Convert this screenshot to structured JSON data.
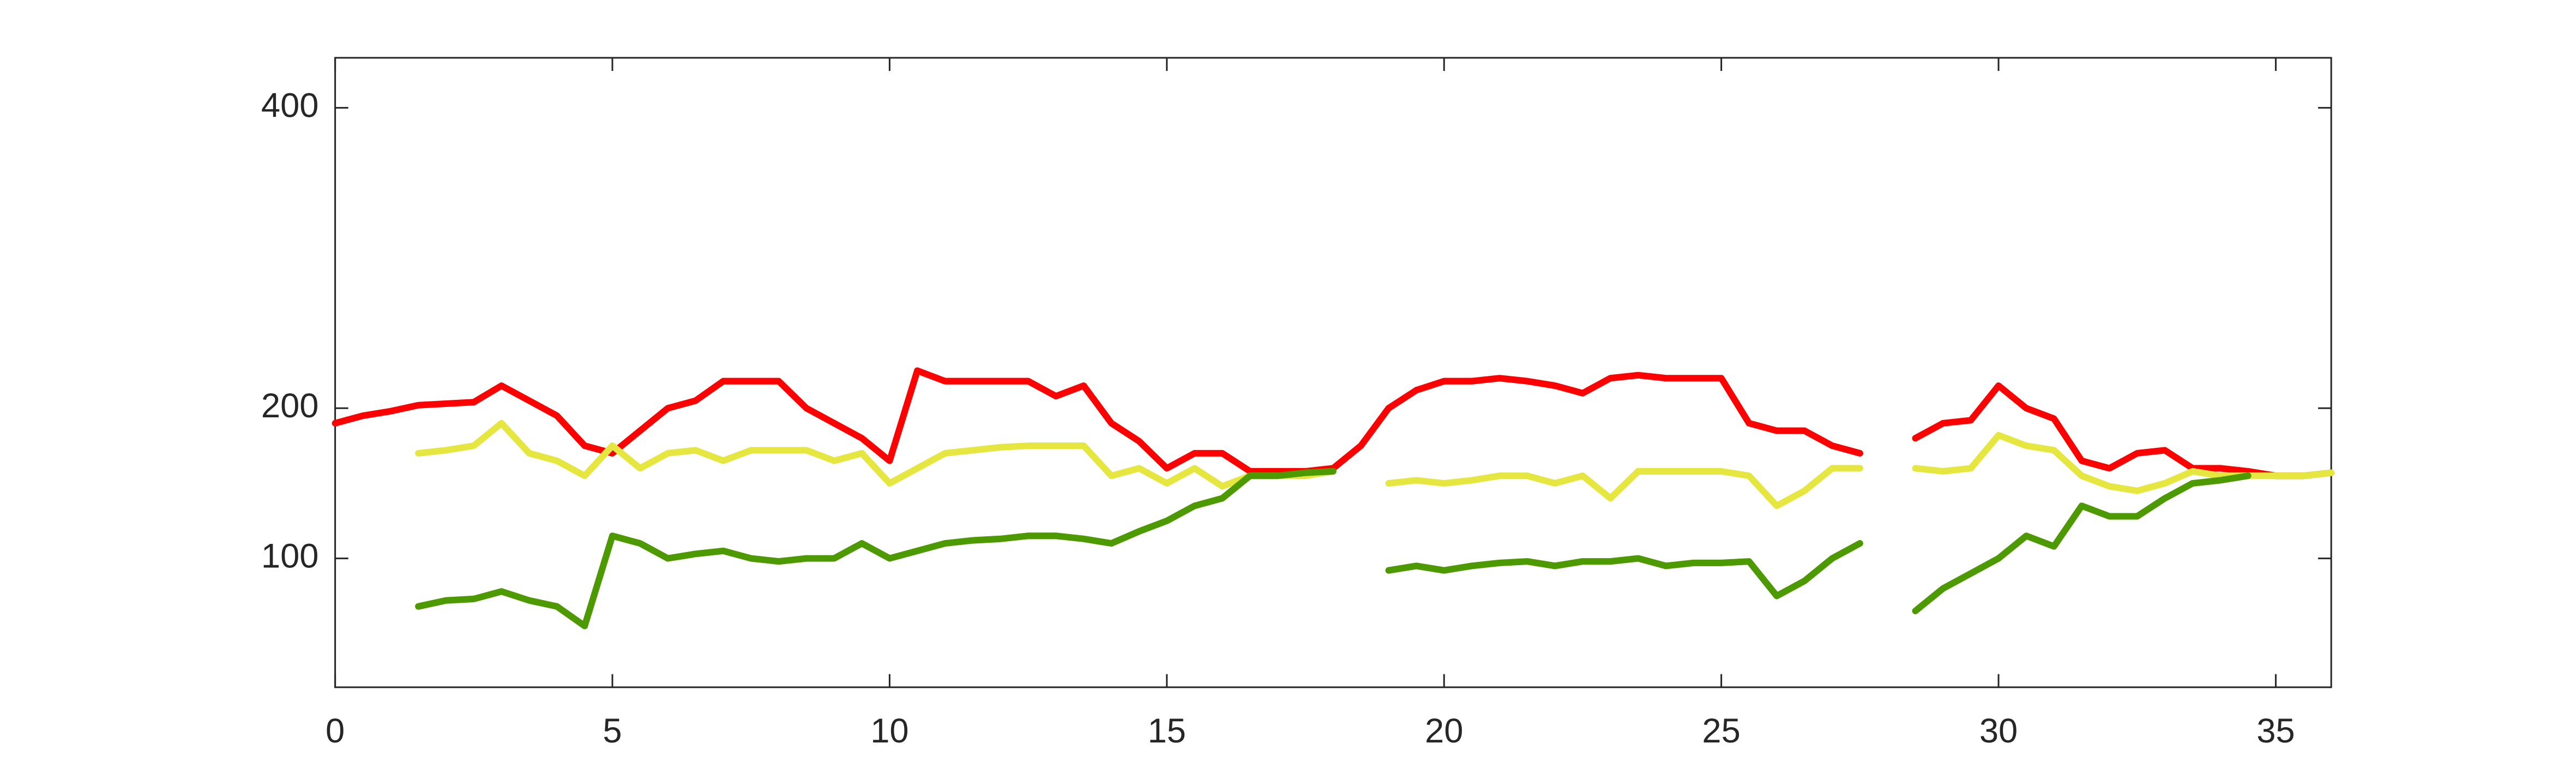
{
  "chart_data": {
    "type": "line",
    "x": [
      0,
      0.5,
      1,
      1.5,
      2,
      2.5,
      3,
      3.5,
      4,
      4.5,
      5,
      5.5,
      6,
      6.5,
      7,
      7.5,
      8,
      8.5,
      9,
      9.5,
      10,
      10.5,
      11,
      11.5,
      12,
      12.5,
      13,
      13.5,
      14,
      14.5,
      15,
      15.5,
      16,
      16.5,
      17,
      17.5,
      18,
      18.5,
      19,
      19.5,
      20,
      20.5,
      21,
      21.5,
      22,
      22.5,
      23,
      23.5,
      24,
      24.5,
      25,
      25.5,
      26,
      26.5,
      27,
      27.5,
      28,
      28.5,
      29,
      29.5,
      30,
      30.5,
      31,
      31.5,
      32,
      32.5,
      33,
      33.5,
      34,
      34.5,
      35,
      35.5,
      36
    ],
    "series": [
      {
        "color": "#ff0000",
        "values": [
          190,
          195,
          198,
          202,
          203,
          204,
          215,
          205,
          195,
          175,
          170,
          185,
          200,
          205,
          218,
          218,
          218,
          200,
          190,
          180,
          165,
          225,
          218,
          218,
          218,
          218,
          208,
          215,
          190,
          178,
          160,
          170,
          170,
          158,
          158,
          158,
          160,
          175,
          200,
          212,
          218,
          218,
          220,
          218,
          215,
          210,
          220,
          222,
          220,
          220,
          220,
          190,
          185,
          185,
          175,
          170,
          null,
          180,
          190,
          192,
          215,
          200,
          193,
          165,
          160,
          170,
          172,
          160,
          160,
          158,
          155,
          155,
          157
        ]
      },
      {
        "color": "#e6e640",
        "values": [
          null,
          null,
          null,
          170,
          172,
          175,
          190,
          170,
          165,
          155,
          175,
          160,
          170,
          172,
          165,
          172,
          172,
          172,
          165,
          170,
          150,
          160,
          170,
          172,
          174,
          175,
          175,
          175,
          155,
          160,
          150,
          160,
          148,
          155,
          155,
          155,
          158,
          null,
          150,
          152,
          150,
          152,
          155,
          155,
          150,
          155,
          140,
          158,
          158,
          158,
          158,
          155,
          135,
          145,
          160,
          160,
          null,
          160,
          158,
          160,
          182,
          175,
          172,
          155,
          148,
          145,
          150,
          158,
          155,
          155,
          155,
          155,
          157
        ]
      },
      {
        "color": "#4d9900",
        "values": [
          null,
          null,
          null,
          68,
          72,
          73,
          78,
          72,
          68,
          55,
          115,
          110,
          100,
          103,
          105,
          100,
          98,
          100,
          100,
          110,
          100,
          105,
          110,
          112,
          113,
          115,
          115,
          113,
          110,
          118,
          125,
          135,
          140,
          155,
          155,
          157,
          158,
          null,
          92,
          95,
          92,
          95,
          97,
          98,
          95,
          98,
          98,
          100,
          95,
          97,
          97,
          98,
          75,
          85,
          100,
          110,
          null,
          65,
          80,
          90,
          100,
          115,
          108,
          135,
          128,
          128,
          140,
          150,
          152,
          155,
          null,
          null,
          null
        ]
      }
    ],
    "xlim": [
      0,
      36
    ],
    "ylim": [
      14.2,
      433.3
    ],
    "xticks": [
      0,
      5,
      10,
      15,
      20,
      25,
      30,
      35
    ],
    "yticks": [
      100,
      200,
      400
    ]
  }
}
